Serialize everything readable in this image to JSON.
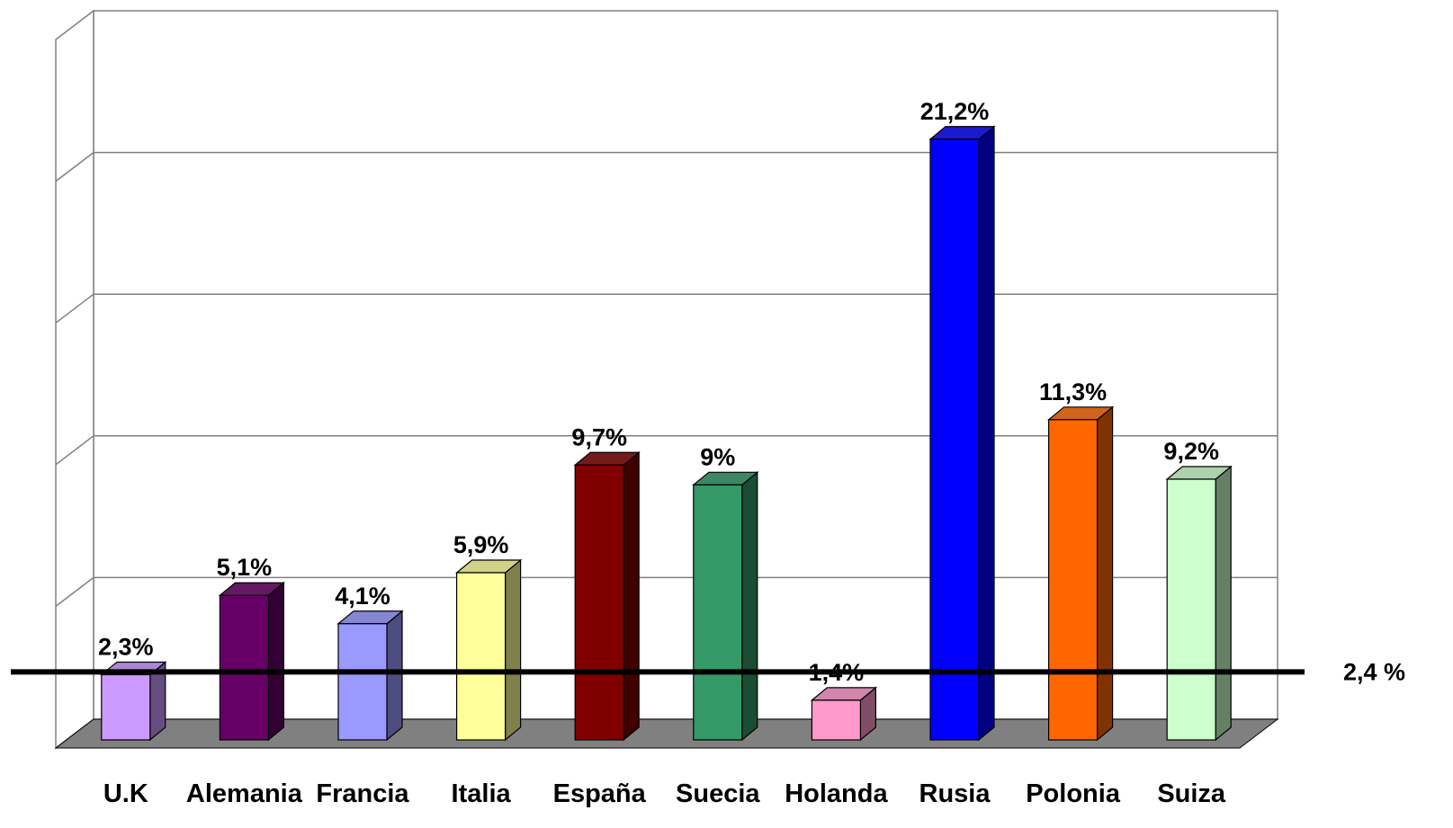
{
  "chart_data": {
    "type": "bar",
    "style": "3d-column",
    "categories": [
      "U.K",
      "Alemania",
      "Francia",
      "Italia",
      "España",
      "Suecia",
      "Holanda",
      "Rusia",
      "Polonia",
      "Suiza"
    ],
    "values": [
      2.3,
      5.1,
      4.1,
      5.9,
      9.7,
      9.0,
      1.4,
      21.2,
      11.3,
      9.2
    ],
    "data_labels": [
      "2,3%",
      "5,1%",
      "4,1%",
      "5,9%",
      "9,7%",
      "9%",
      "1,4%",
      "21,2%",
      "11,3%",
      "9,2%"
    ],
    "colors": [
      "#CC99FF",
      "#660066",
      "#9999FF",
      "#FFFF99",
      "#800000",
      "#339966",
      "#FF99CC",
      "#0000FF",
      "#FF6600",
      "#CCFFCC"
    ],
    "ylim": [
      0,
      25
    ],
    "grid": true,
    "reference_line": {
      "value": 2.4,
      "label": "2,4 %"
    },
    "title": "",
    "xlabel": "",
    "ylabel": ""
  }
}
